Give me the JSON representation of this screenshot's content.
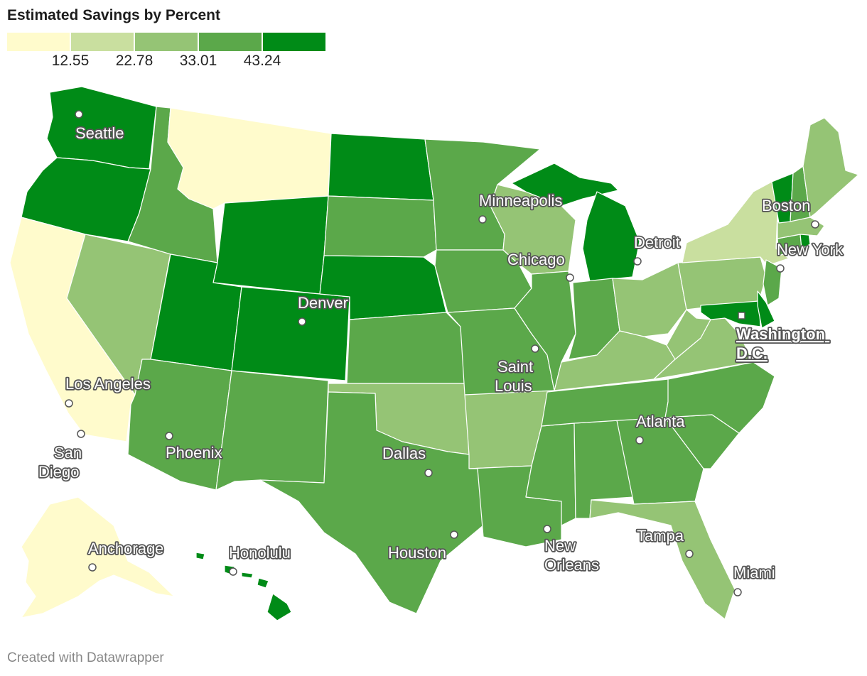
{
  "title": "Estimated Savings by Percent",
  "footer": "Created with Datawrapper",
  "legend": {
    "colors": [
      "#fffbcc",
      "#c9df9f",
      "#95c475",
      "#5ba84a",
      "#008b17"
    ],
    "ticks": [
      "12.55",
      "22.78",
      "33.01",
      "43.24"
    ]
  },
  "cities": [
    {
      "name": "seattle",
      "lines": [
        "Seattle"
      ]
    },
    {
      "name": "minneapolis",
      "lines": [
        "Minneapolis"
      ]
    },
    {
      "name": "boston",
      "lines": [
        "Boston"
      ]
    },
    {
      "name": "detroit",
      "lines": [
        "Detroit"
      ]
    },
    {
      "name": "new-york",
      "lines": [
        "New York"
      ]
    },
    {
      "name": "chicago",
      "lines": [
        "Chicago"
      ]
    },
    {
      "name": "denver",
      "lines": [
        "Denver"
      ]
    },
    {
      "name": "washington-dc",
      "lines": [
        "Washington",
        "D.C."
      ]
    },
    {
      "name": "saint-louis",
      "lines": [
        "Saint",
        "Louis"
      ]
    },
    {
      "name": "los-angeles",
      "lines": [
        "Los Angeles"
      ]
    },
    {
      "name": "san-diego",
      "lines": [
        "San",
        "Diego"
      ]
    },
    {
      "name": "phoenix",
      "lines": [
        "Phoenix"
      ]
    },
    {
      "name": "atlanta",
      "lines": [
        "Atlanta"
      ]
    },
    {
      "name": "dallas",
      "lines": [
        "Dallas"
      ]
    },
    {
      "name": "tampa",
      "lines": [
        "Tampa"
      ]
    },
    {
      "name": "houston",
      "lines": [
        "Houston"
      ]
    },
    {
      "name": "new-orleans",
      "lines": [
        "New",
        "Orleans"
      ]
    },
    {
      "name": "anchorage",
      "lines": [
        "Anchorage"
      ]
    },
    {
      "name": "honolulu",
      "lines": [
        "Honolulu"
      ]
    },
    {
      "name": "miami",
      "lines": [
        "Miami"
      ]
    }
  ]
}
